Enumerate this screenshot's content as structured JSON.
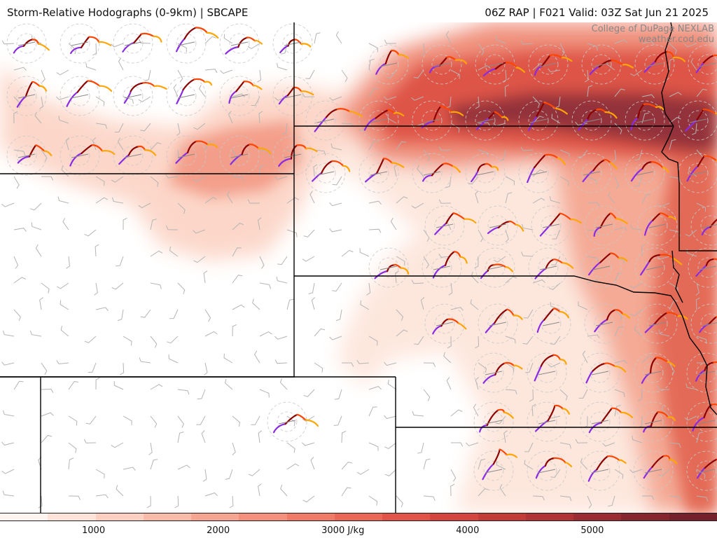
{
  "header": {
    "title": "Storm-Relative Hodographs (0-9km) | SBCAPE",
    "run_info": "06Z RAP | F021 Valid: 03Z Sat Jun 21 2025"
  },
  "credit": {
    "line1": "College of DuPage NEXLAB",
    "line2": "weather.cod.edu"
  },
  "colors": {
    "cape_low": "#fdeee8",
    "cape_mid": "#f4a28f",
    "cape_high": "#e35a4a",
    "cape_max": "#8f2a30",
    "hodo_low": "#8a2be2",
    "hodo_mid": "#8b0000",
    "hodo_upper": "#ff4500",
    "hodo_top": "#ffa500",
    "border": "#000000",
    "barb": "#b4b4b4"
  },
  "colorbar": {
    "colors": [
      "#fef4ef",
      "#fde3d8",
      "#fbd0c2",
      "#f9bba9",
      "#f6a592",
      "#f38f7c",
      "#ef7a68",
      "#ea6656",
      "#e15348",
      "#d3453e",
      "#c23b39",
      "#ae3236",
      "#9a2b33",
      "#87252f",
      "#75202b"
    ],
    "ticks": [
      {
        "label": "1000",
        "value": 1000
      },
      {
        "label": "2000",
        "value": 2000
      },
      {
        "label": "3000 J/kg",
        "value": 3000
      },
      {
        "label": "4000",
        "value": 4000
      },
      {
        "label": "5000",
        "value": 5000
      }
    ],
    "range": [
      250,
      6000
    ]
  }
}
